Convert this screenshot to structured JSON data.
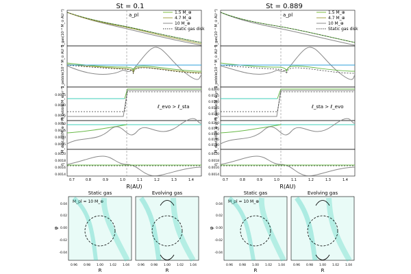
{
  "figure": {
    "titles": [
      "St = 0.1",
      "St = 0.889"
    ],
    "planet_label": "a_pl",
    "x_axis_label": "R(AU)",
    "x_ticks": [
      "0.7",
      "0.8",
      "0.9",
      "1.0",
      "1.1",
      "1.2",
      "1.3",
      "1.4"
    ],
    "y_labels": {
      "surface_density": "Σ_gas(10⁻⁴ M_⊙ AU⁻²)",
      "dust_density": "Σ_pebble(10⁻⁶ M_⊙ AU⁻²)",
      "flux_top": "Ṁ_pebble(M_⊕ yr⁻¹)",
      "flux_mid": "Ṁ_dust,ptl(M_⊕ yr⁻¹)",
      "eta": "η"
    },
    "panel_ticks": {
      "left": {
        "flux_top": [
          "0.0045",
          "0.0040",
          "0.0035"
        ],
        "flux_mid": [
          "0.0050",
          "0.0045",
          "0.0040",
          "0.0035"
        ],
        "eta": [
          "0.0020",
          "0.0018",
          "0.0016",
          "0.0014"
        ]
      },
      "right": {
        "flux_top": [
          "0.0200",
          "0.0195",
          "0.0190",
          "0.0185",
          "0.0180"
        ],
        "flux_mid": [
          "0.0200",
          "0.0195",
          "0.0190",
          "0.0185",
          "0.0180"
        ],
        "eta": [
          "0.0020",
          "0.0018",
          "0.0016",
          "0.0014"
        ]
      }
    },
    "legend": [
      {
        "label": "1.5 M_⊕",
        "color": "#7fbf3f",
        "style": "solid"
      },
      {
        "label": "4.7 M_⊕",
        "color": "#a3a345",
        "style": "solid"
      },
      {
        "label": "10 M_⊕",
        "color": "#888888",
        "style": "solid"
      },
      {
        "label": "Static gas disk",
        "color": "#333333",
        "style": "dotted"
      }
    ],
    "annotations": {
      "left_ratio": "ℓ_evo > ℓ_sta",
      "right_ratio": "ℓ_sta > ℓ_evo"
    },
    "bottom": {
      "mass_label": "M_pl = 10 M_⊕",
      "panels": [
        "Static gas",
        "Evolving gas",
        "Static gas",
        "Evolving gas"
      ],
      "y_axis_label": "φ",
      "x_axis_label": "R",
      "y_ticks": [
        "0.04",
        "0.02",
        "0.00",
        "-0.02",
        "-0.04"
      ],
      "x_ticks": [
        "0.96",
        "0.98",
        "1.00",
        "1.02",
        "1.04"
      ]
    },
    "colors": {
      "teal": "#3ccfb9",
      "cyan": "#2b9fd8",
      "green": "#67b846",
      "olive": "#a3a345",
      "gray": "#888888"
    }
  },
  "chart_data": [
    {
      "type": "line",
      "panel": "left-top",
      "title": "St = 0.1",
      "xlabel": "R(AU)",
      "ylabel": "Σ_gas(10⁻⁴ M_⊙ AU⁻²)",
      "xlim": [
        0.67,
        1.45
      ],
      "ylim": [
        1.0,
        1.25
      ],
      "x": [
        0.67,
        0.75,
        0.85,
        0.95,
        1.0,
        1.05,
        1.15,
        1.25,
        1.35,
        1.45
      ],
      "series": [
        {
          "name": "1.5 M_⊕",
          "values": [
            1.22,
            1.2,
            1.18,
            1.16,
            1.15,
            1.14,
            1.13,
            1.12,
            1.11,
            1.1
          ]
        },
        {
          "name": "4.7 M_⊕",
          "values": [
            1.22,
            1.2,
            1.17,
            1.15,
            1.13,
            1.12,
            1.11,
            1.1,
            1.09,
            1.08
          ]
        },
        {
          "name": "10 M_⊕",
          "values": [
            1.22,
            1.19,
            1.16,
            1.12,
            1.1,
            1.08,
            1.07,
            1.06,
            1.05,
            1.04
          ]
        },
        {
          "name": "Static gas disk",
          "values": [
            1.22,
            1.2,
            1.18,
            1.16,
            1.15,
            1.14,
            1.13,
            1.12,
            1.11,
            1.1
          ]
        }
      ]
    }
  ]
}
